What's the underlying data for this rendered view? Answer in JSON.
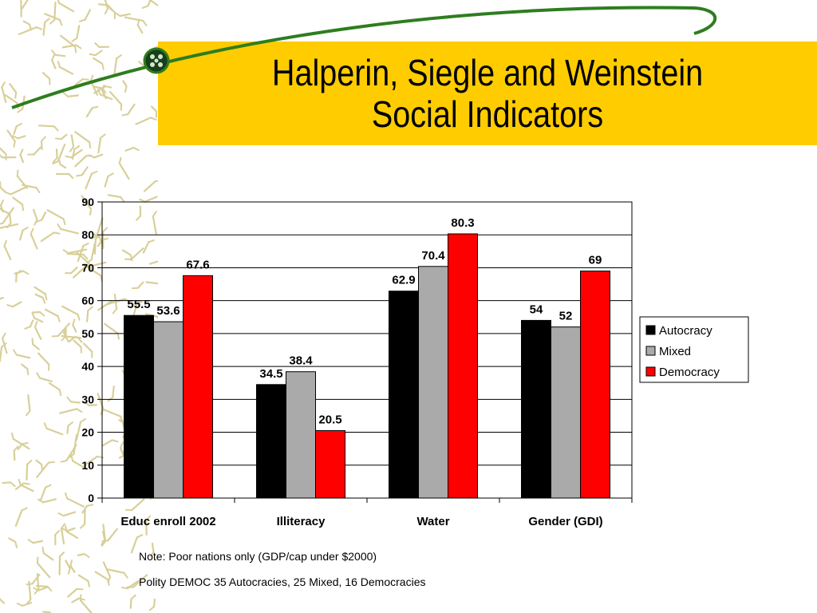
{
  "title": {
    "line1": "Halperin, Siegle and Weinstein",
    "line2": "Social Indicators"
  },
  "chart_data": {
    "type": "bar",
    "categories": [
      "Educ enroll 2002",
      "Illiteracy",
      "Water",
      "Gender (GDI)"
    ],
    "series": [
      {
        "name": "Autocracy",
        "values": [
          55.5,
          34.5,
          62.9,
          54
        ],
        "labels": [
          "55.5",
          "34.5",
          "62.9",
          "54"
        ],
        "color": "#000000"
      },
      {
        "name": "Mixed",
        "values": [
          53.6,
          38.4,
          70.4,
          52
        ],
        "labels": [
          "53.6",
          "38.4",
          "70.4",
          "52"
        ],
        "color": "#aaaaaa"
      },
      {
        "name": "Democracy",
        "values": [
          67.6,
          20.5,
          80.3,
          69
        ],
        "labels": [
          "67.6",
          "20.5",
          "80.3",
          "69"
        ],
        "color": "#ff0000"
      }
    ],
    "ylim": [
      0,
      90
    ],
    "yticks": [
      0,
      10,
      20,
      30,
      40,
      50,
      60,
      70,
      80,
      90
    ],
    "grid": true,
    "legend": "right"
  },
  "notes": {
    "line1": "Note: Poor nations only (GDP/cap under $2000)",
    "line2": "Polity DEMOC 35 Autocracies, 25 Mixed, 16 Democracies"
  }
}
